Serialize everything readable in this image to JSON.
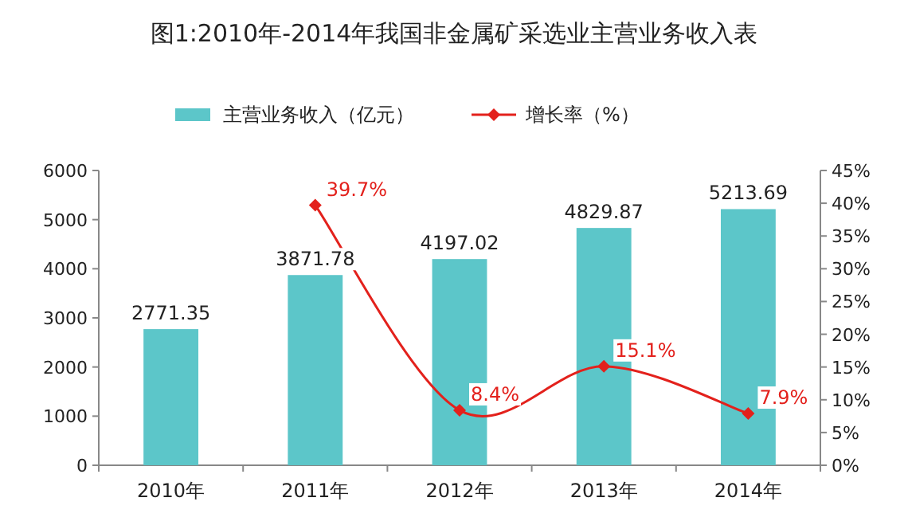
{
  "chart_data": {
    "type": "bar",
    "title": "图1:2010年-2014年我国非金属矿采选业主营业务收入表",
    "categories": [
      "2010年",
      "2011年",
      "2012年",
      "2013年",
      "2014年"
    ],
    "series": [
      {
        "name": "主营业务收入（亿元）",
        "color": "#5cc6c9",
        "values": [
          2771.35,
          3871.78,
          4197.02,
          4829.87,
          5213.69
        ],
        "value_labels": [
          "2771.35",
          "3871.78",
          "4197.02",
          "4829.87",
          "5213.69"
        ]
      },
      {
        "name": "增长率（%）",
        "type": "line",
        "axis": "y2",
        "color": "#e3211c",
        "marker": "diamond",
        "values": [
          null,
          39.7,
          8.4,
          15.1,
          7.9
        ],
        "value_labels": [
          null,
          "39.7%",
          "8.4%",
          "15.1%",
          "7.9%"
        ]
      }
    ],
    "ylim": [
      0,
      6000
    ],
    "yticks": [
      0,
      1000,
      2000,
      3000,
      4000,
      5000,
      6000
    ],
    "y2lim": [
      0,
      45
    ],
    "y2ticks": [
      {
        "value": 0,
        "label": "0%"
      },
      {
        "value": 5,
        "label": "5%"
      },
      {
        "value": 10,
        "label": "10%"
      },
      {
        "value": 15,
        "label": "15%"
      },
      {
        "value": 20,
        "label": "20%"
      },
      {
        "value": 25,
        "label": "25%"
      },
      {
        "value": 30,
        "label": "30%"
      },
      {
        "value": 35,
        "label": "35%"
      },
      {
        "value": 40,
        "label": "40%"
      },
      {
        "value": 45,
        "label": "45%"
      }
    ],
    "legend": "top"
  }
}
